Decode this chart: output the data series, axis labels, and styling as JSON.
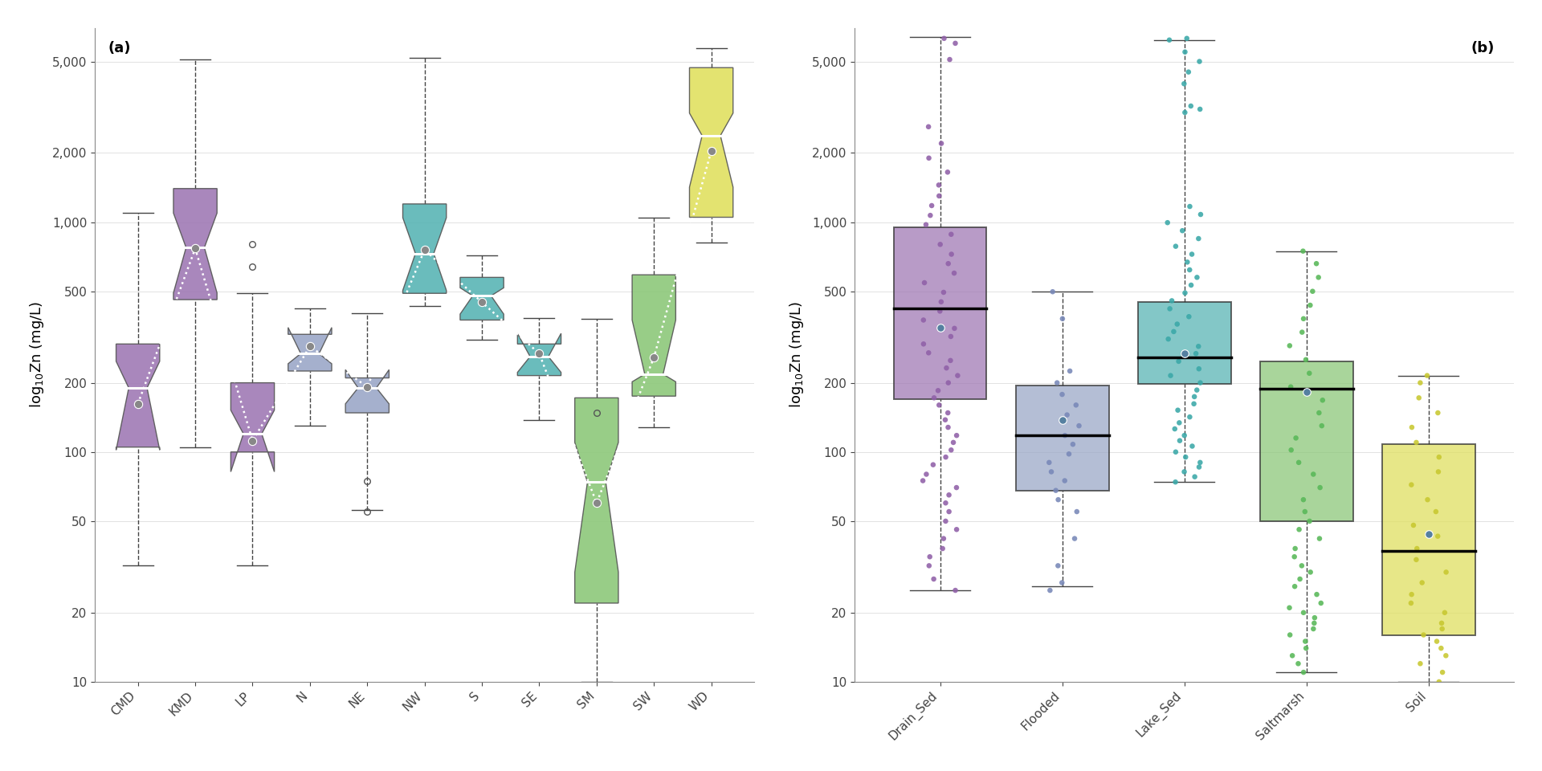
{
  "panel_a": {
    "categories": [
      "CMD",
      "KMD",
      "LP",
      "N",
      "NE",
      "NW",
      "S",
      "SE",
      "SM",
      "SW",
      "WD"
    ],
    "colors": [
      "#a07ab5",
      "#a07ab5",
      "#a07ab5",
      "#9ba8c8",
      "#9ba8c8",
      "#5ab5b5",
      "#5ab5b5",
      "#5ab5b5",
      "#8dc87a",
      "#8dc87a",
      "#e0e060"
    ],
    "box_q1": [
      105,
      460,
      100,
      225,
      148,
      490,
      375,
      215,
      22,
      175,
      1050
    ],
    "box_q3": [
      295,
      1400,
      200,
      325,
      210,
      1200,
      575,
      295,
      172,
      590,
      4700
    ],
    "box_median": [
      190,
      775,
      120,
      268,
      190,
      730,
      478,
      260,
      74,
      218,
      2380
    ],
    "whisker_lo": [
      32,
      105,
      32,
      130,
      56,
      430,
      308,
      138,
      10,
      128,
      815
    ],
    "whisker_hi": [
      1100,
      5100,
      490,
      420,
      400,
      5200,
      718,
      382,
      380,
      1050,
      5700
    ],
    "outliers_x": [
      3,
      3,
      5,
      5,
      9
    ],
    "outliers_y": [
      800,
      640,
      55,
      75,
      148
    ],
    "mean": [
      162,
      768,
      112,
      288,
      192,
      758,
      448,
      268,
      60,
      258,
      2040
    ],
    "ci_lo": [
      102,
      492,
      82,
      242,
      162,
      505,
      398,
      222,
      30,
      202,
      1420
    ],
    "ci_hi": [
      248,
      1095,
      152,
      348,
      228,
      1045,
      518,
      328,
      110,
      375,
      2980
    ],
    "ylabel": "log$_{10}$Zn (mg/L)",
    "ylim_log": [
      10,
      7000
    ],
    "yticks": [
      10,
      20,
      50,
      100,
      200,
      500,
      1000,
      2000,
      5000
    ],
    "label": "(a)"
  },
  "panel_b": {
    "categories": [
      "Drain_Sed",
      "Flooded",
      "Lake_Sed",
      "Saltmarsh",
      "Soil"
    ],
    "colors": [
      "#9060a8",
      "#7888b8",
      "#3aa8a8",
      "#58b858",
      "#c8c830"
    ],
    "box_colors_fill": [
      "#a07ab5",
      "#9ba8c8",
      "#5ab5b5",
      "#8dc87a",
      "#e0e060"
    ],
    "box_q1": [
      170,
      68,
      198,
      50,
      16
    ],
    "box_q3": [
      950,
      195,
      448,
      248,
      108
    ],
    "box_median": [
      420,
      118,
      258,
      188,
      37
    ],
    "whisker_lo": [
      25,
      26,
      74,
      11,
      10
    ],
    "whisker_hi": [
      6400,
      498,
      6200,
      748,
      215
    ],
    "mean_color": "#5580a0",
    "mean": [
      348,
      138,
      268,
      182,
      44
    ],
    "ylabel": "log$_{10}$Zn (mg/L)",
    "ylim_log": [
      10,
      7000
    ],
    "yticks": [
      10,
      20,
      50,
      100,
      200,
      500,
      1000,
      2000,
      5000
    ],
    "label": "(b)",
    "scatter_data": {
      "Drain_Sed": [
        25,
        28,
        32,
        35,
        38,
        42,
        46,
        50,
        55,
        60,
        65,
        70,
        75,
        80,
        88,
        95,
        102,
        110,
        118,
        128,
        138,
        148,
        160,
        172,
        185,
        200,
        215,
        232,
        250,
        270,
        295,
        318,
        345,
        375,
        410,
        450,
        495,
        545,
        600,
        660,
        725,
        800,
        885,
        975,
        1070,
        1180,
        1300,
        1450,
        1650,
        1900,
        2200,
        2600,
        5100,
        6000,
        6300
      ],
      "Flooded": [
        25,
        27,
        32,
        42,
        55,
        62,
        68,
        75,
        82,
        90,
        98,
        108,
        118,
        130,
        145,
        160,
        178,
        200,
        225,
        380,
        498
      ],
      "Lake_Sed": [
        74,
        78,
        82,
        86,
        90,
        95,
        100,
        106,
        112,
        118,
        126,
        134,
        142,
        152,
        162,
        174,
        186,
        200,
        215,
        230,
        248,
        268,
        288,
        310,
        334,
        360,
        388,
        420,
        455,
        492,
        532,
        575,
        620,
        670,
        725,
        785,
        848,
        918,
        995,
        1080,
        1170,
        3000,
        3200,
        4000,
        5000,
        5500,
        6200,
        6300,
        4500,
        3100
      ],
      "Saltmarsh": [
        11,
        12,
        13,
        14,
        15,
        16,
        17,
        18,
        19,
        20,
        21,
        22,
        24,
        26,
        28,
        30,
        32,
        35,
        38,
        42,
        46,
        50,
        55,
        62,
        70,
        80,
        90,
        102,
        115,
        130,
        148,
        168,
        192,
        220,
        252,
        290,
        332,
        380,
        435,
        500,
        575,
        660,
        748
      ],
      "Soil": [
        10,
        11,
        12,
        13,
        14,
        15,
        16,
        17,
        18,
        20,
        22,
        24,
        27,
        30,
        34,
        38,
        43,
        48,
        55,
        62,
        72,
        82,
        95,
        110,
        128,
        148,
        172,
        200,
        215
      ]
    }
  },
  "background_color": "#ffffff",
  "fontsize_label": 13,
  "fontsize_tick": 11,
  "fontsize_panel": 13
}
